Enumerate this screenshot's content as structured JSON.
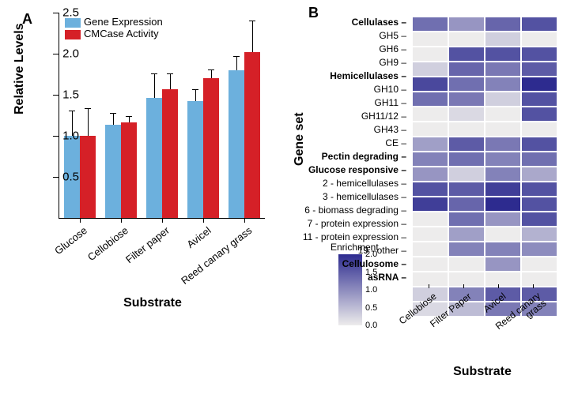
{
  "panelA": {
    "label": "A",
    "type": "bar",
    "ylabel": "Relative Levels",
    "xlabel": "Substrate",
    "ylim": [
      0,
      2.5
    ],
    "yticks": [
      0.5,
      1.0,
      1.5,
      2.0,
      2.5
    ],
    "categories": [
      "Glucose",
      "Cellobiose",
      "Filter paper",
      "Avicel",
      "Reed canary grass"
    ],
    "series": [
      {
        "name": "Gene Expression",
        "color": "#6cb0dd",
        "values": [
          1.0,
          1.13,
          1.46,
          1.42,
          1.8
        ],
        "errors": [
          0.3,
          0.14,
          0.29,
          0.14,
          0.16
        ]
      },
      {
        "name": "CMCase Activity",
        "color": "#d52027",
        "values": [
          1.0,
          1.16,
          1.57,
          1.7,
          2.02
        ],
        "errors": [
          0.33,
          0.07,
          0.18,
          0.1,
          0.37
        ]
      }
    ],
    "bar_width": 0.38,
    "axis_color": "#000000",
    "label_fontsize": 16,
    "tick_fontsize": 15
  },
  "panelB": {
    "label": "B",
    "type": "heatmap",
    "ylabel": "Gene set",
    "xlabel": "Substrate",
    "rows": [
      {
        "label": "Cellulases",
        "bold": true
      },
      {
        "label": "GH5"
      },
      {
        "label": "GH6"
      },
      {
        "label": "GH9"
      },
      {
        "label": "Hemicellulases",
        "bold": true
      },
      {
        "label": "GH10"
      },
      {
        "label": "GH11"
      },
      {
        "label": "GH11/12"
      },
      {
        "label": "GH43"
      },
      {
        "label": "CE"
      },
      {
        "label": "Pectin degrading",
        "bold": true
      },
      {
        "label": "Glucose responsive",
        "bold": true
      },
      {
        "label": "2 - hemicellulases"
      },
      {
        "label": "3 - hemicellulases"
      },
      {
        "label": "6 - biomass degrading"
      },
      {
        "label": "7 - protein expression"
      },
      {
        "label": "11 - protein expression"
      },
      {
        "label": "19 - other"
      },
      {
        "label": "Cellulosome",
        "bold": true
      },
      {
        "label": "asRNA",
        "bold": true
      }
    ],
    "columns": [
      "Cellobiose",
      "Filter Paper",
      "Avicel",
      "Reed canary grass"
    ],
    "matrix": [
      [
        1.3,
        0.9,
        1.4,
        1.6
      ],
      [
        0.0,
        0.0,
        0.3,
        0.0
      ],
      [
        0.0,
        1.6,
        1.6,
        1.6
      ],
      [
        0.3,
        1.4,
        1.2,
        1.5
      ],
      [
        1.7,
        1.3,
        1.1,
        2.0
      ],
      [
        1.3,
        1.2,
        0.3,
        1.6
      ],
      [
        0.0,
        0.2,
        0.0,
        1.6
      ],
      [
        0.0,
        0.0,
        0.0,
        0.0
      ],
      [
        0.8,
        1.5,
        1.2,
        1.6
      ],
      [
        1.1,
        1.3,
        1.1,
        1.3
      ],
      [
        0.9,
        0.3,
        1.1,
        0.7
      ],
      [
        1.6,
        1.5,
        1.8,
        1.6
      ],
      [
        1.8,
        1.4,
        2.0,
        1.6
      ],
      [
        0.0,
        1.3,
        0.9,
        1.6
      ],
      [
        0.0,
        0.8,
        0.0,
        0.6
      ],
      [
        0.0,
        1.1,
        1.1,
        1.0
      ],
      [
        0.0,
        0.0,
        0.9,
        0.0
      ],
      [
        0.0,
        0.0,
        0.0,
        0.0
      ],
      [
        0.3,
        1.1,
        1.5,
        1.5
      ],
      [
        0.2,
        0.5,
        1.2,
        1.1
      ]
    ],
    "color_low": "#edecec",
    "color_high": "#2d2b8f",
    "enrichment_range": [
      0,
      2.0
    ],
    "colorbar_title": "Enrichment",
    "colorbar_ticks": [
      0,
      0.5,
      1.0,
      1.5,
      2.0
    ]
  }
}
